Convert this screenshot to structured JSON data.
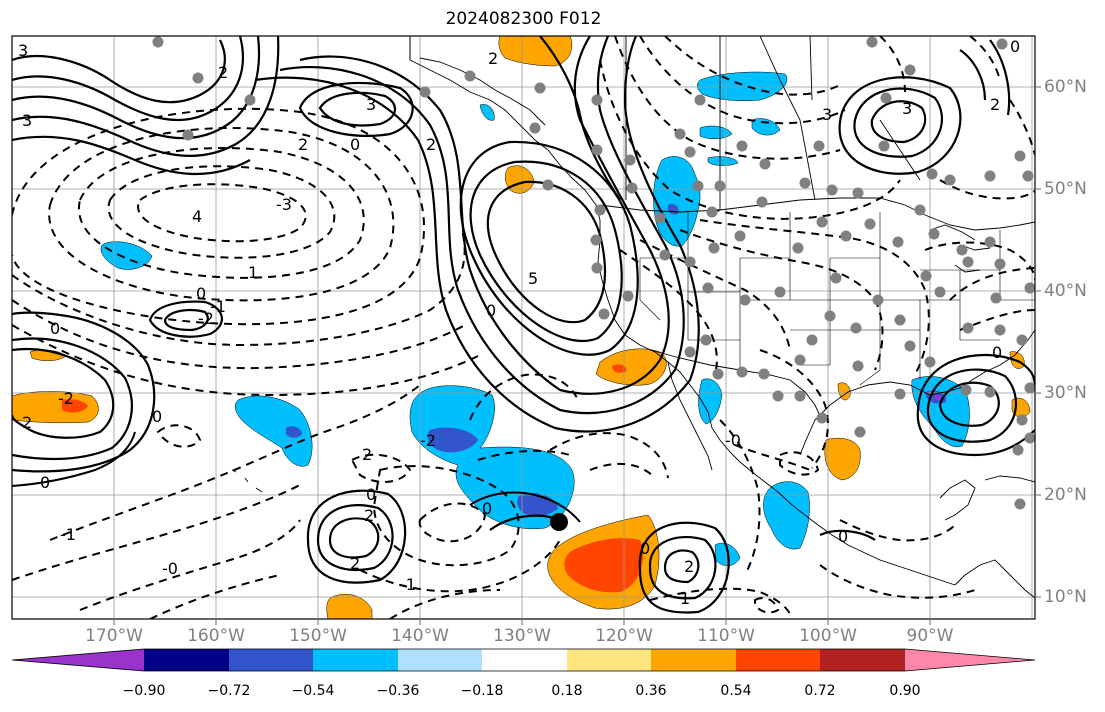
{
  "title": "2024082300 F012",
  "axes": {
    "lon_labels": [
      "170°W",
      "160°W",
      "150°W",
      "140°W",
      "130°W",
      "120°W",
      "110°W",
      "100°W",
      "90°W"
    ],
    "lat_labels": [
      "60°N",
      "50°N",
      "40°N",
      "30°N",
      "20°N",
      "10°N"
    ],
    "tick_color": "#808080",
    "grid": true
  },
  "contour_labels": [
    "3",
    "3",
    "2",
    "2",
    "3",
    "2",
    "0",
    "2",
    "3",
    "0",
    "3",
    "2",
    "5",
    "4",
    "-3",
    "1",
    "0",
    "0",
    "-1",
    "-2",
    "0",
    "0",
    "-2",
    "0",
    "2",
    "2",
    "-1",
    "-2",
    "-0",
    "2",
    "0",
    "0",
    "2",
    "0",
    "1",
    "2",
    "-1",
    "-0",
    "0",
    "0"
  ],
  "colorbar": {
    "ticks": [
      "−0.90",
      "−0.72",
      "−0.54",
      "−0.36",
      "−0.18",
      "0.18",
      "0.36",
      "0.54",
      "0.72",
      "0.90"
    ],
    "colors": [
      "#9933cc",
      "#000088",
      "#3355cc",
      "#00bfff",
      "#b0e0ff",
      "#ffffff",
      "#ffe680",
      "#ffa500",
      "#ff4500",
      "#b22222",
      "#ff88aa"
    ]
  },
  "markers": {
    "storm_center": "black-dot",
    "stations": "grey-dots"
  }
}
